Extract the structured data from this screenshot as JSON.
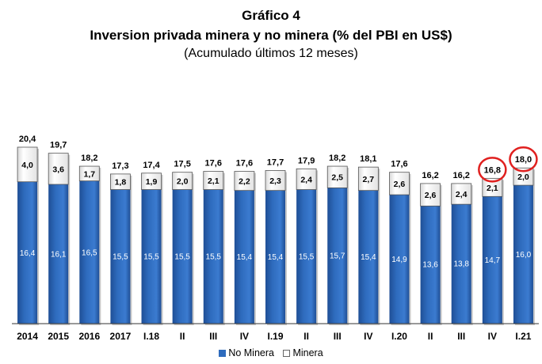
{
  "title": "Gráfico 4",
  "subtitle": "Inversion privada minera y no minera (% del PBI en US$)",
  "note": "(Acumulado últimos 12 meses)",
  "colors": {
    "no_minera": "#2e6bbd",
    "minera": "#ffffff",
    "highlight": "#e0201f"
  },
  "legend": {
    "no_minera": "No Minera",
    "minera": "Minera"
  },
  "chart_data": {
    "type": "bar",
    "stacked": true,
    "categories": [
      "2014",
      "2015",
      "2016",
      "2017",
      "I.18",
      "II",
      "III",
      "IV",
      "I.19",
      "II",
      "III",
      "IV",
      "I.20",
      "II",
      "III",
      "IV",
      "I.21"
    ],
    "series": [
      {
        "name": "No Minera",
        "values": [
          16.4,
          16.1,
          16.5,
          15.5,
          15.5,
          15.5,
          15.5,
          15.4,
          15.4,
          15.5,
          15.7,
          15.4,
          14.9,
          13.6,
          13.8,
          14.7,
          16.0
        ]
      },
      {
        "name": "Minera",
        "values": [
          4.0,
          3.6,
          1.7,
          1.8,
          1.9,
          2.0,
          2.1,
          2.2,
          2.3,
          2.4,
          2.5,
          2.7,
          2.6,
          2.6,
          2.4,
          2.1,
          2.0
        ]
      }
    ],
    "totals": [
      20.4,
      19.7,
      18.2,
      17.3,
      17.4,
      17.5,
      17.6,
      17.6,
      17.7,
      17.9,
      18.2,
      18.1,
      17.6,
      16.2,
      16.2,
      16.8,
      18.0
    ],
    "labels_no_minera": [
      "16,4",
      "16,1",
      "16,5",
      "15,5",
      "15,5",
      "15,5",
      "15,5",
      "15,4",
      "15,4",
      "15,5",
      "15,7",
      "15,4",
      "14,9",
      "13,6",
      "13,8",
      "14,7",
      "16,0"
    ],
    "labels_minera": [
      "4,0",
      "3,6",
      "1,7",
      "1,8",
      "1,9",
      "2,0",
      "2,1",
      "2,2",
      "2,3",
      "2,4",
      "2,5",
      "2,7",
      "2,6",
      "2,6",
      "2,4",
      "2,1",
      "2,0"
    ],
    "labels_total": [
      "20,4",
      "19,7",
      "18,2",
      "17,3",
      "17,4",
      "17,5",
      "17,6",
      "17,6",
      "17,7",
      "17,9",
      "18,2",
      "18,1",
      "17,6",
      "16,2",
      "16,2",
      "16,8",
      "18,0"
    ],
    "highlighted_totals": [
      15,
      16
    ],
    "ylim": [
      0,
      20.4
    ],
    "grid": false,
    "legend_position": "bottom"
  }
}
